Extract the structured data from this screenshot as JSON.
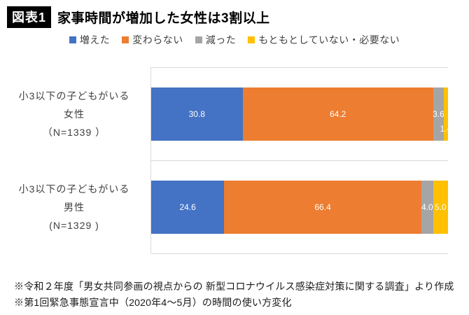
{
  "header": {
    "badge": "図表1"
  },
  "chart_data": {
    "type": "bar",
    "orientation": "horizontal-stacked",
    "title": "家事時間が増加した女性は3割以上",
    "legend_position": "top",
    "xlim": [
      0,
      100
    ],
    "unit": "percent",
    "grid": "category separator lines only, light gray",
    "value_labels": "inside segments, white, one decimal",
    "categories": [
      {
        "lines": [
          "小3以下の子どもがいる",
          "女性",
          "（N=1339 ）"
        ]
      },
      {
        "lines": [
          "小3以下の子どもがいる",
          "男性",
          "(N=1329 )"
        ]
      }
    ],
    "series": [
      {
        "name": "増えた",
        "color": "#4472C4",
        "values": [
          30.8,
          24.6
        ],
        "label_dy": [
          0,
          0
        ]
      },
      {
        "name": "変わらない",
        "color": "#ED7D31",
        "values": [
          64.2,
          66.4
        ],
        "label_dy": [
          0,
          0
        ]
      },
      {
        "name": "減った",
        "color": "#A5A5A5",
        "values": [
          3.6,
          4.0
        ],
        "label_dy": [
          0,
          0
        ]
      },
      {
        "name": "もともとしていない・必要ない",
        "color": "#FFC000",
        "values": [
          1.4,
          5.0
        ],
        "label_dy": [
          21,
          0
        ]
      }
    ]
  },
  "footnotes": [
    "※令和２年度「男女共同参画の視点からの 新型コロナウイルス感染症対策に関する調査」より作成",
    "※第1回緊急事態宣言中（2020年4〜5月）の時間の使い方変化"
  ],
  "colors": {
    "gridline": "#D9D9D9",
    "text_muted": "#404040",
    "badge_bg": "#000000",
    "badge_fg": "#FFFFFF",
    "bar_label": "#FFFFFF"
  }
}
